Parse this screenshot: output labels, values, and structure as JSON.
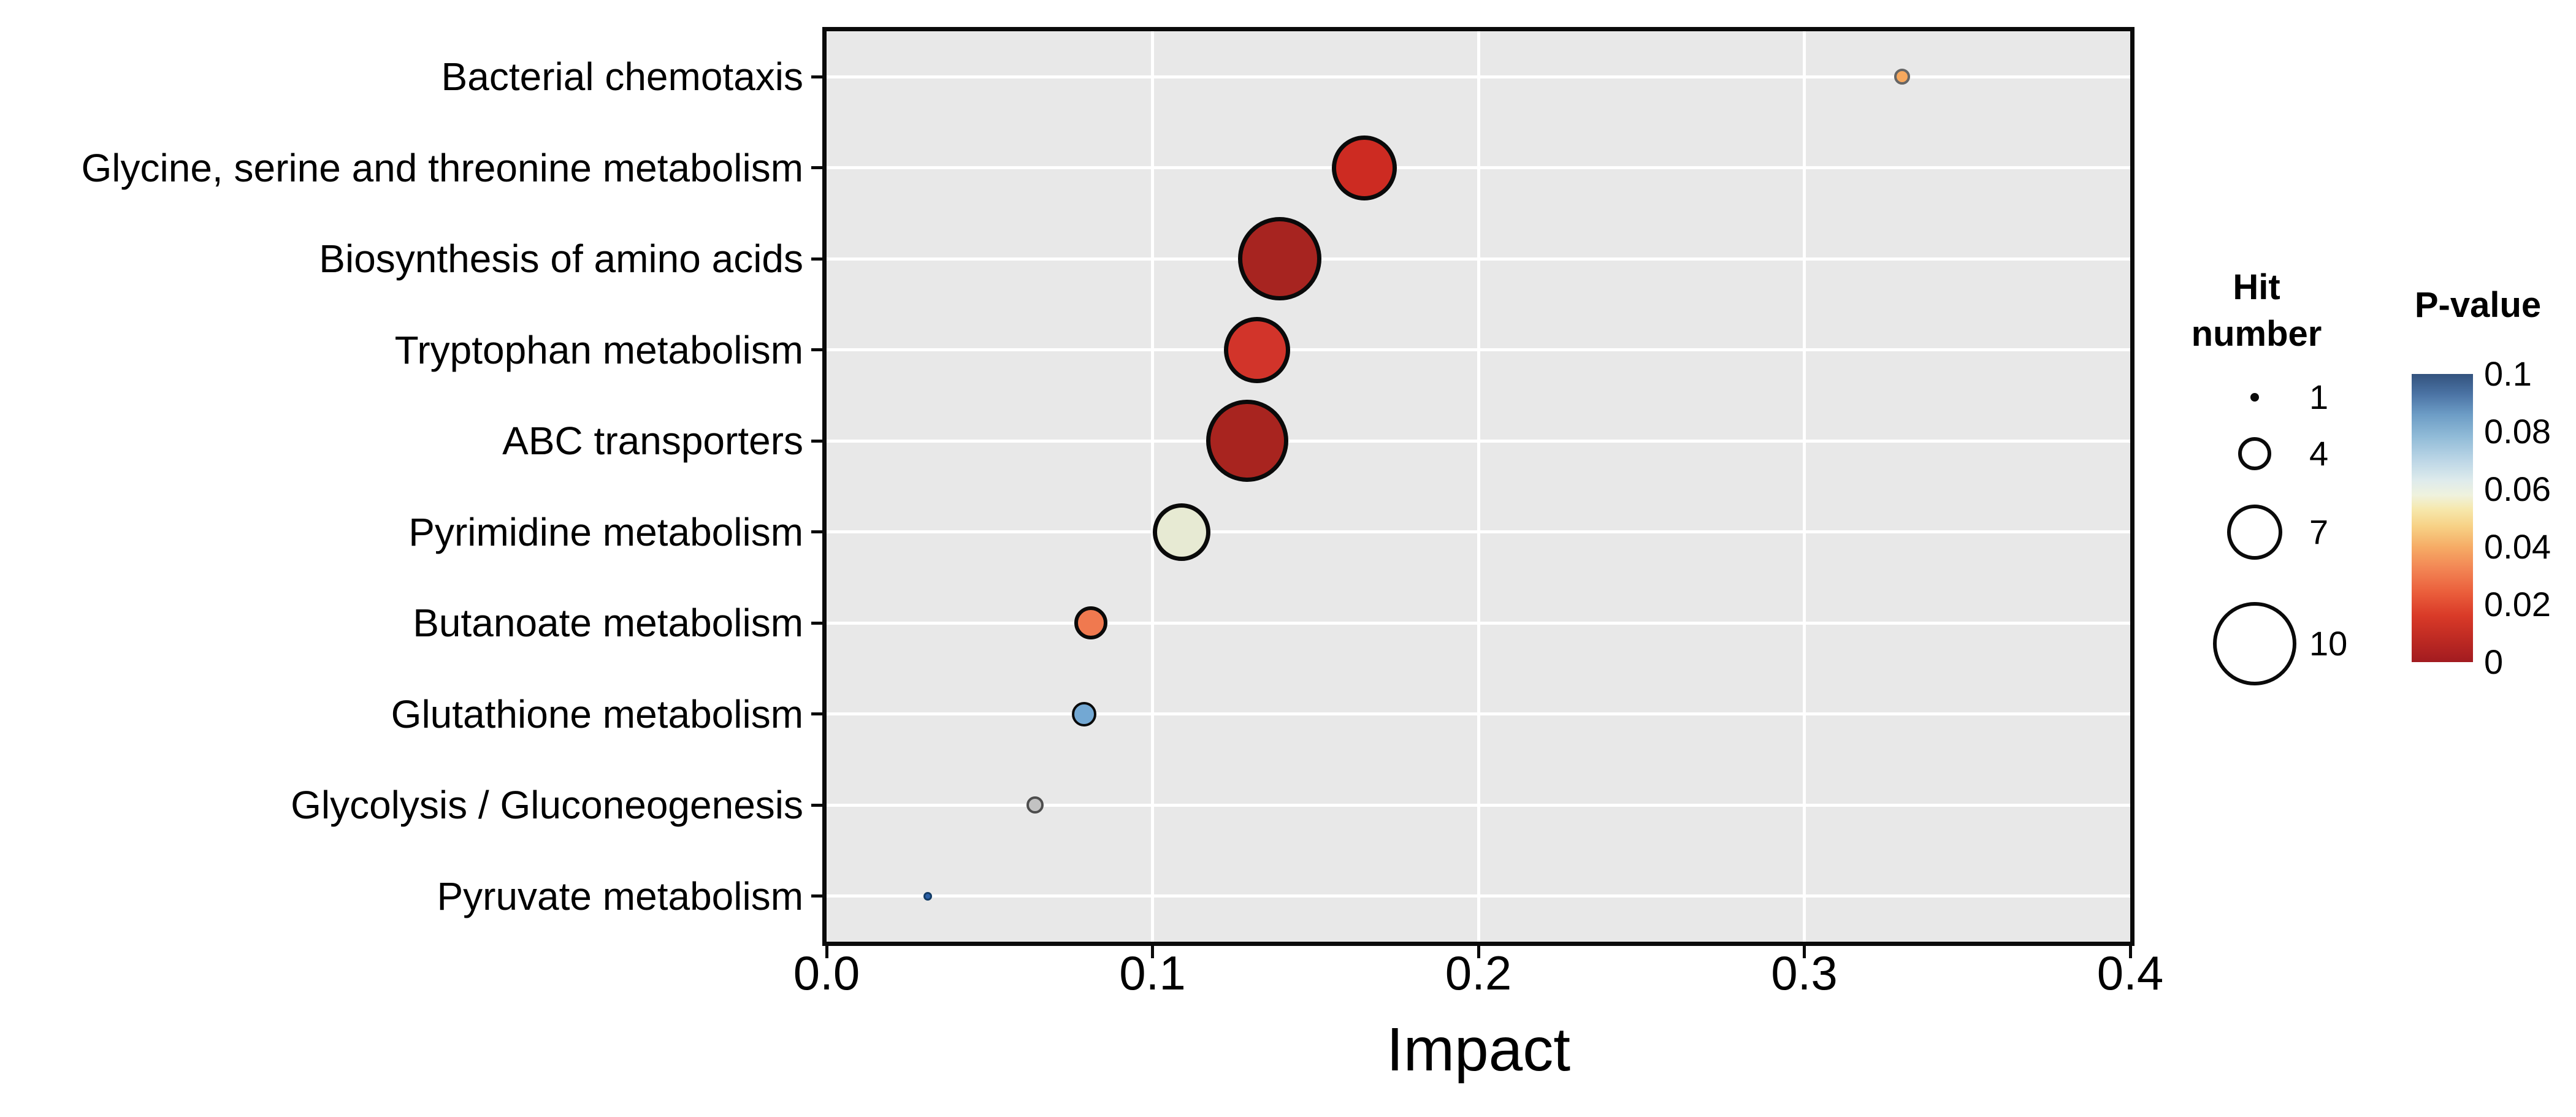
{
  "chart_data": {
    "type": "scatter",
    "title": "",
    "xlabel": "Impact",
    "ylabel": "",
    "xlim": [
      0,
      0.4
    ],
    "x_ticks": [
      {
        "value": 0.0,
        "label": "0.0"
      },
      {
        "value": 0.1,
        "label": "0.1"
      },
      {
        "value": 0.2,
        "label": "0.2"
      },
      {
        "value": 0.3,
        "label": "0.3"
      },
      {
        "value": 0.4,
        "label": "0.4"
      }
    ],
    "grid": true,
    "panel_background": "#E8E8E8",
    "gridline_color": "#ffffff",
    "categories": [
      "Bacterial chemotaxis",
      "Glycine, serine and threonine metabolism",
      "Biosynthesis of amino acids",
      "Tryptophan metabolism",
      "ABC transporters",
      "Pyrimidine metabolism",
      "Butanoate metabolism",
      "Glutathione metabolism",
      "Glycolysis / Gluconeogenesis",
      "Pyruvate metabolism"
    ],
    "points": [
      {
        "pathway": "Bacterial chemotaxis",
        "impact": 0.33,
        "hit_number": 2,
        "p_value": 0.037,
        "fill": "#F6A85E",
        "stroke": "#666666",
        "radius_px": 13
      },
      {
        "pathway": "Glycine, serine and threonine metabolism",
        "impact": 0.165,
        "hit_number": 8,
        "p_value": 0.01,
        "fill": "#CD2B22",
        "stroke": "#0a0a0a",
        "radius_px": 53
      },
      {
        "pathway": "Biosynthesis of amino acids",
        "impact": 0.139,
        "hit_number": 10,
        "p_value": 0.003,
        "fill": "#A72420",
        "stroke": "#0a0a0a",
        "radius_px": 68
      },
      {
        "pathway": "Tryptophan metabolism",
        "impact": 0.132,
        "hit_number": 8,
        "p_value": 0.012,
        "fill": "#D2342A",
        "stroke": "#0a0a0a",
        "radius_px": 54
      },
      {
        "pathway": "ABC transporters",
        "impact": 0.129,
        "hit_number": 10,
        "p_value": 0.002,
        "fill": "#A8241F",
        "stroke": "#0a0a0a",
        "radius_px": 67
      },
      {
        "pathway": "Pyrimidine metabolism",
        "impact": 0.109,
        "hit_number": 7,
        "p_value": 0.055,
        "fill": "#E7EAD3",
        "stroke": "#0a0a0a",
        "radius_px": 47
      },
      {
        "pathway": "Butanoate metabolism",
        "impact": 0.081,
        "hit_number": 4,
        "p_value": 0.028,
        "fill": "#F0794F",
        "stroke": "#0a0a0a",
        "radius_px": 27
      },
      {
        "pathway": "Glutathione metabolism",
        "impact": 0.079,
        "hit_number": 3,
        "p_value": 0.082,
        "fill": "#73A8D3",
        "stroke": "#0a0a0a",
        "radius_px": 20
      },
      {
        "pathway": "Glycolysis / Gluconeogenesis",
        "impact": 0.064,
        "hit_number": 2,
        "p_value": 0.1,
        "fill": "#C2C2C2",
        "stroke": "#4D4D4D",
        "radius_px": 14
      },
      {
        "pathway": "Pyruvate metabolism",
        "impact": 0.031,
        "hit_number": 1,
        "p_value": 0.095,
        "fill": "#2B5FA6",
        "stroke": "#123B66",
        "radius_px": 7
      }
    ],
    "legend_size": {
      "title_line1": "Hit",
      "title_line2": "number",
      "entries": [
        {
          "label": "1",
          "radius_px": 7
        },
        {
          "label": "4",
          "radius_px": 27
        },
        {
          "label": "7",
          "radius_px": 45
        },
        {
          "label": "10",
          "radius_px": 68
        }
      ],
      "legend_position": "right"
    },
    "legend_color": {
      "title": "P-value",
      "ticks": [
        "0.1",
        "0.08",
        "0.06",
        "0.04",
        "0.02",
        "0"
      ],
      "range": [
        0,
        0.1
      ],
      "gradient_bottom_to_top": [
        {
          "offset": 0,
          "color": "#A21B20"
        },
        {
          "offset": 8,
          "color": "#BE2A23"
        },
        {
          "offset": 16,
          "color": "#D93A28"
        },
        {
          "offset": 24,
          "color": "#EA5D3B"
        },
        {
          "offset": 32,
          "color": "#F28353"
        },
        {
          "offset": 40,
          "color": "#F6AC66"
        },
        {
          "offset": 47,
          "color": "#F7D185"
        },
        {
          "offset": 53,
          "color": "#F6E8AC"
        },
        {
          "offset": 58,
          "color": "#EFF2DE"
        },
        {
          "offset": 63,
          "color": "#DEEBEC"
        },
        {
          "offset": 70,
          "color": "#BCD6E6"
        },
        {
          "offset": 78,
          "color": "#92BCD8"
        },
        {
          "offset": 86,
          "color": "#6C9CC5"
        },
        {
          "offset": 93,
          "color": "#4B73A4"
        },
        {
          "offset": 100,
          "color": "#33527E"
        }
      ],
      "legend_position": "right"
    }
  }
}
